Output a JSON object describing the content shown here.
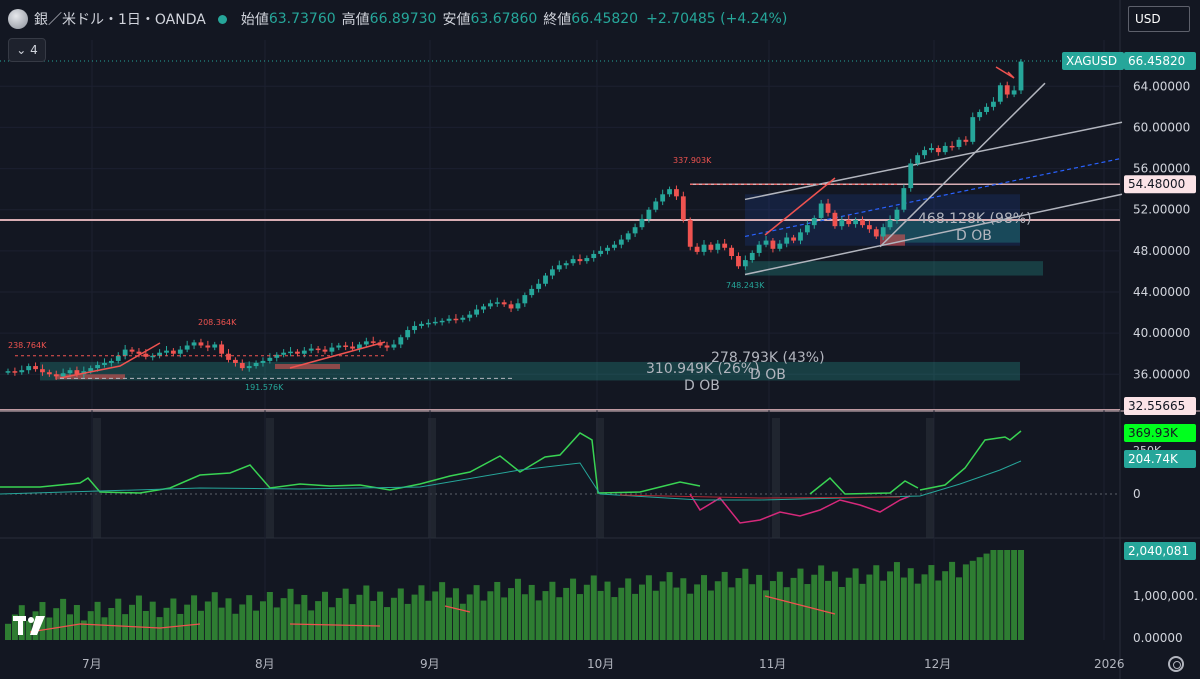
{
  "legend": {
    "symbol": "銀／米ドル・1日・OANDA",
    "open_label": "始値",
    "open": "63.73760",
    "high_label": "高値",
    "high": "66.89730",
    "low_label": "安値",
    "low": "63.67860",
    "close_label": "終値",
    "close": "66.45820",
    "change": "+2.70485 (+4.24%)"
  },
  "collapse_count": "4",
  "currency": "USD",
  "price_tag": {
    "symbol": "XAGUSD",
    "price": "66.45820"
  },
  "level_tags": [
    "54.48000",
    "32.55665"
  ],
  "osc_tags": [
    "369.93K",
    "204.74K"
  ],
  "vol_tag": "2,040,081",
  "annotations": {
    "pivot_high_1": "238.764K",
    "pivot_high_2": "208.364K",
    "pivot_low_1": "191.576K",
    "pivot_high_3": "337.903K",
    "pivot_low_2": "748.243K",
    "ob_top": "468.128K (98%)",
    "ob_top_label": "D OB",
    "ob_bottom_a": "310.949K (26%)",
    "ob_bottom_a_label": "D OB",
    "ob_bottom_b": "278.793K (43%)",
    "ob_bottom_b_label": "D OB"
  },
  "colors": {
    "bg": "#131722",
    "up": "#26a69a",
    "down": "#ef5350",
    "vol": "#2e7d32"
  },
  "chart_data": {
    "type": "candlestick",
    "title": "銀／米ドル・1日・OANDA",
    "x_ticks": [
      "7月",
      "8月",
      "9月",
      "10月",
      "11月",
      "12月",
      "2026"
    ],
    "y_ticks": [
      "64.00000",
      "60.00000",
      "56.00000",
      "52.00000",
      "48.00000",
      "44.00000",
      "40.00000",
      "36.00000"
    ],
    "ylim": [
      33.5,
      68.5
    ],
    "candle_closes": [
      36.3,
      36.2,
      36.4,
      36.8,
      36.5,
      36.2,
      36.0,
      35.8,
      36.1,
      36.4,
      36.0,
      36.3,
      36.6,
      36.9,
      37.1,
      37.3,
      37.8,
      38.4,
      38.2,
      38.0,
      37.7,
      37.8,
      38.1,
      38.3,
      38.0,
      38.4,
      38.8,
      39.1,
      38.8,
      38.6,
      38.9,
      38.0,
      37.4,
      37.1,
      36.6,
      36.8,
      37.1,
      37.3,
      37.6,
      37.9,
      38.1,
      38.2,
      38.0,
      38.3,
      38.5,
      38.4,
      38.2,
      38.6,
      38.8,
      38.7,
      38.5,
      38.9,
      39.2,
      39.1,
      38.8,
      38.6,
      38.9,
      39.6,
      40.3,
      40.7,
      40.9,
      41.0,
      41.1,
      41.2,
      41.4,
      41.3,
      41.5,
      41.8,
      42.3,
      42.6,
      42.9,
      43.0,
      42.8,
      42.4,
      42.9,
      43.7,
      44.3,
      44.8,
      45.6,
      46.2,
      46.6,
      46.8,
      47.2,
      47.0,
      47.3,
      47.7,
      48.0,
      48.3,
      48.6,
      49.1,
      49.7,
      50.3,
      51.1,
      52.0,
      52.8,
      53.5,
      54.0,
      53.3,
      51.0,
      48.4,
      47.9,
      48.6,
      48.1,
      48.7,
      48.3,
      47.5,
      46.5,
      47.1,
      47.8,
      48.6,
      49.0,
      48.2,
      48.7,
      49.3,
      49.0,
      49.8,
      50.5,
      51.2,
      52.6,
      51.7,
      50.4,
      51.0,
      50.6,
      51.0,
      50.5,
      50.1,
      49.4,
      50.3,
      51.0,
      52.0,
      54.1,
      56.5,
      57.3,
      57.8,
      58.0,
      57.6,
      58.2,
      58.1,
      58.8,
      58.6,
      61.0,
      61.5,
      62.0,
      62.5,
      64.1,
      63.2,
      63.6,
      66.4
    ],
    "x_axis_labels_note": "daily candles from late June to mid December",
    "oscillator": {
      "zero_label": "0",
      "partial_label": "250K"
    },
    "volume": {
      "y_ticks": [
        "1,000,000.",
        "0.00000"
      ]
    }
  }
}
